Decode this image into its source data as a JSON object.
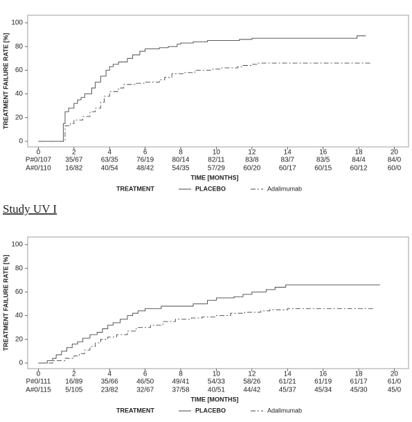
{
  "heading": "Study UV I",
  "chart_data": [
    {
      "type": "step",
      "ylabel": "TREATMENT FAILURE RATE [%]",
      "xlabel": "TIME [MONTHS]",
      "legend_title": "TREATMENT",
      "xlim": [
        -0.6,
        20.8
      ],
      "ylim": [
        -4.7,
        106.4
      ],
      "xticks": [
        0,
        2,
        4,
        6,
        8,
        10,
        12,
        14,
        16,
        18,
        20
      ],
      "yticks": [
        0,
        20,
        40,
        60,
        80,
        100
      ],
      "series": [
        {
          "name": "PLACEBO",
          "color": "#444",
          "dash": "solid",
          "x": [
            0,
            1.4,
            1.5,
            1.7,
            2,
            2.2,
            2.4,
            2.6,
            3,
            3.2,
            3.5,
            3.8,
            4,
            4.2,
            4.5,
            5,
            5.3,
            5.7,
            6,
            6.8,
            7.3,
            7.8,
            8,
            8.7,
            9.5,
            11.3,
            12,
            17.9,
            18.4
          ],
          "values": [
            0,
            15,
            25,
            28,
            32,
            35,
            37,
            40,
            45,
            50,
            55,
            60,
            63,
            65,
            67,
            70,
            73,
            76,
            78,
            79,
            80,
            82,
            83,
            84,
            85,
            86,
            87,
            89,
            89
          ]
        },
        {
          "name": "Adalimumab",
          "color": "#444",
          "dash": "dashdot",
          "x": [
            0,
            1.4,
            1.5,
            1.8,
            2,
            2.5,
            2.9,
            3.2,
            3.5,
            3.7,
            4,
            4.5,
            4.8,
            5.5,
            6,
            6.8,
            7.1,
            7.5,
            8.2,
            8.8,
            9.8,
            10.3,
            11.2,
            11.5,
            12,
            12.3,
            18.7
          ],
          "values": [
            0,
            0,
            13,
            15,
            18,
            21,
            25,
            28,
            33,
            38,
            42,
            45,
            48,
            49,
            50,
            52,
            54,
            57,
            58,
            60,
            61,
            62,
            63,
            64,
            65,
            66,
            66
          ]
        }
      ],
      "risk_table": [
        [
          "P#0/107",
          "35/67",
          "63/35",
          "76/19",
          "80/14",
          "82/11",
          "83/8",
          "83/7",
          "83/5",
          "84/4",
          "84/0"
        ],
        [
          "A#0/110",
          "16/82",
          "40/54",
          "48/42",
          "54/35",
          "57/29",
          "60/20",
          "60/17",
          "60/15",
          "60/12",
          "60/0"
        ]
      ]
    },
    {
      "type": "step",
      "ylabel": "TREATMENT FAILURE RATE [%]",
      "xlabel": "TIME [MONTHS]",
      "legend_title": "TREATMENT",
      "xlim": [
        -0.6,
        20.8
      ],
      "ylim": [
        -4.7,
        106.4
      ],
      "xticks": [
        0,
        2,
        4,
        6,
        8,
        10,
        12,
        14,
        16,
        18,
        20
      ],
      "yticks": [
        0,
        20,
        40,
        60,
        80,
        100
      ],
      "series": [
        {
          "name": "PLACEBO",
          "color": "#444",
          "dash": "solid",
          "x": [
            0,
            0.5,
            0.8,
            1,
            1.3,
            1.6,
            1.9,
            2.2,
            2.5,
            2.9,
            3.3,
            3.6,
            3.9,
            4.2,
            4.6,
            5,
            5.3,
            5.6,
            6,
            6.9,
            8.7,
            9.5,
            10,
            11,
            11.5,
            12,
            12.8,
            13.3,
            13.9,
            19.2
          ],
          "values": [
            0,
            2,
            4,
            7,
            10,
            13,
            16,
            18,
            21,
            24,
            26,
            29,
            32,
            34,
            37,
            40,
            42,
            44,
            46,
            48,
            50,
            53,
            55,
            56,
            58,
            60,
            62,
            64,
            66,
            66
          ]
        },
        {
          "name": "Adalimumab",
          "color": "#444",
          "dash": "dashdot",
          "x": [
            0,
            0.8,
            1.5,
            2,
            2.3,
            2.6,
            2.9,
            3.2,
            3.5,
            3.9,
            4.4,
            5,
            5.5,
            6.3,
            7,
            7.7,
            8.6,
            9.2,
            10,
            10.8,
            11.6,
            12.5,
            13,
            14,
            18.9
          ],
          "values": [
            0,
            2,
            4,
            6,
            8,
            11,
            14,
            17,
            20,
            22,
            24,
            27,
            30,
            32,
            35,
            37,
            38,
            39,
            40,
            42,
            43,
            44,
            45,
            46,
            46
          ]
        }
      ],
      "risk_table": [
        [
          "P#0/111",
          "16/89",
          "35/66",
          "46/50",
          "49/41",
          "54/33",
          "58/26",
          "61/21",
          "61/19",
          "61/17",
          "61/0"
        ],
        [
          "A#0/115",
          "5/105",
          "23/82",
          "32/67",
          "37/58",
          "40/51",
          "44/42",
          "45/37",
          "45/34",
          "45/30",
          "45/0"
        ]
      ]
    }
  ]
}
